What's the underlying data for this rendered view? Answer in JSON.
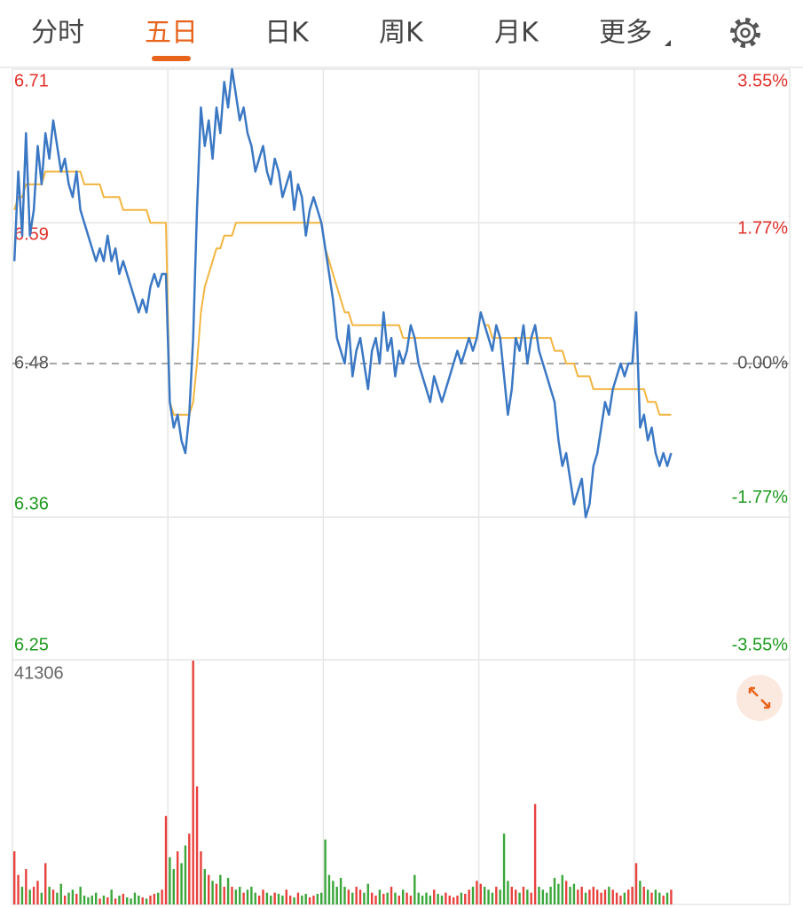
{
  "tabs": [
    "分时",
    "五日",
    "日K",
    "周K",
    "月K",
    "更多"
  ],
  "active_tab": 1,
  "chart_data": [
    {
      "type": "line",
      "xlim": [
        0,
        200
      ],
      "ylim": [
        6.25,
        6.71
      ],
      "yticks": [
        6.71,
        6.59,
        6.48,
        6.36,
        6.25
      ],
      "y2lim": [
        -3.55,
        3.55
      ],
      "y2ticks": [
        {
          "value": 3.55,
          "label": "3.55%"
        },
        {
          "value": 1.77,
          "label": "1.77%"
        },
        {
          "value": 0,
          "label": "0.00%"
        },
        {
          "value": -1.77,
          "label": "-1.77%"
        },
        {
          "value": -3.55,
          "label": "-3.55%"
        }
      ],
      "series": [
        {
          "color": "#3b78c4",
          "values": [
            6.56,
            6.63,
            6.58,
            6.66,
            6.58,
            6.6,
            6.65,
            6.62,
            6.66,
            6.64,
            6.67,
            6.65,
            6.63,
            6.64,
            6.62,
            6.61,
            6.63,
            6.6,
            6.59,
            6.58,
            6.57,
            6.56,
            6.57,
            6.56,
            6.58,
            6.56,
            6.57,
            6.55,
            6.56,
            6.55,
            6.54,
            6.53,
            6.52,
            6.53,
            6.52,
            6.54,
            6.55,
            6.54,
            6.55,
            6.55,
            6.45,
            6.43,
            6.44,
            6.42,
            6.41,
            6.44,
            6.5,
            6.6,
            6.68,
            6.65,
            6.67,
            6.64,
            6.68,
            6.66,
            6.7,
            6.68,
            6.71,
            6.69,
            6.67,
            6.68,
            6.66,
            6.65,
            6.63,
            6.64,
            6.65,
            6.63,
            6.62,
            6.64,
            6.63,
            6.61,
            6.62,
            6.63,
            6.6,
            6.62,
            6.61,
            6.58,
            6.6,
            6.61,
            6.6,
            6.59,
            6.57,
            6.55,
            6.53,
            6.5,
            6.49,
            6.48,
            6.51,
            6.47,
            6.49,
            6.5,
            6.48,
            6.46,
            6.49,
            6.5,
            6.48,
            6.52,
            6.49,
            6.5,
            6.47,
            6.49,
            6.48,
            6.49,
            6.51,
            6.5,
            6.48,
            6.47,
            6.46,
            6.45,
            6.47,
            6.46,
            6.45,
            6.46,
            6.47,
            6.48,
            6.49,
            6.48,
            6.49,
            6.5,
            6.49,
            6.5,
            6.52,
            6.51,
            6.5,
            6.49,
            6.51,
            6.5,
            6.47,
            6.44,
            6.46,
            6.5,
            6.49,
            6.51,
            6.48,
            6.5,
            6.51,
            6.49,
            6.48,
            6.47,
            6.46,
            6.45,
            6.42,
            6.4,
            6.41,
            6.39,
            6.37,
            6.38,
            6.39,
            6.36,
            6.37,
            6.4,
            6.41,
            6.43,
            6.45,
            6.44,
            6.46,
            6.47,
            6.48,
            6.47,
            6.48,
            6.48,
            6.52,
            6.43,
            6.44,
            6.42,
            6.43,
            6.41,
            6.4,
            6.41,
            6.4,
            6.41
          ]
        },
        {
          "color": "#f2b540",
          "values": [
            6.6,
            6.61,
            6.61,
            6.62,
            6.62,
            6.62,
            6.62,
            6.62,
            6.63,
            6.63,
            6.63,
            6.63,
            6.63,
            6.63,
            6.63,
            6.63,
            6.63,
            6.63,
            6.62,
            6.62,
            6.62,
            6.62,
            6.62,
            6.61,
            6.61,
            6.61,
            6.61,
            6.61,
            6.6,
            6.6,
            6.6,
            6.6,
            6.6,
            6.6,
            6.6,
            6.59,
            6.59,
            6.59,
            6.59,
            6.59,
            6.45,
            6.44,
            6.44,
            6.44,
            6.44,
            6.44,
            6.45,
            6.48,
            6.52,
            6.54,
            6.55,
            6.56,
            6.57,
            6.57,
            6.58,
            6.58,
            6.58,
            6.59,
            6.59,
            6.59,
            6.59,
            6.59,
            6.59,
            6.59,
            6.59,
            6.59,
            6.59,
            6.59,
            6.59,
            6.59,
            6.59,
            6.59,
            6.59,
            6.59,
            6.59,
            6.59,
            6.59,
            6.59,
            6.59,
            6.59,
            6.57,
            6.56,
            6.55,
            6.54,
            6.53,
            6.52,
            6.52,
            6.51,
            6.51,
            6.51,
            6.51,
            6.51,
            6.51,
            6.51,
            6.51,
            6.51,
            6.51,
            6.51,
            6.51,
            6.51,
            6.5,
            6.5,
            6.5,
            6.5,
            6.5,
            6.5,
            6.5,
            6.5,
            6.5,
            6.5,
            6.5,
            6.5,
            6.5,
            6.5,
            6.5,
            6.5,
            6.5,
            6.5,
            6.5,
            6.5,
            6.52,
            6.51,
            6.51,
            6.5,
            6.5,
            6.5,
            6.5,
            6.5,
            6.5,
            6.5,
            6.5,
            6.5,
            6.5,
            6.5,
            6.5,
            6.5,
            6.5,
            6.5,
            6.5,
            6.49,
            6.49,
            6.49,
            6.48,
            6.48,
            6.48,
            6.47,
            6.47,
            6.47,
            6.47,
            6.46,
            6.46,
            6.46,
            6.46,
            6.46,
            6.46,
            6.46,
            6.46,
            6.46,
            6.46,
            6.46,
            6.46,
            6.46,
            6.46,
            6.45,
            6.45,
            6.45,
            6.44,
            6.44,
            6.44,
            6.44
          ]
        }
      ]
    },
    {
      "type": "bar",
      "xlim": [
        0,
        200
      ],
      "ylim": [
        0,
        41306
      ],
      "yticks": [
        41306
      ],
      "up_color": "#e8413c",
      "down_color": "#3aa63a",
      "values": [
        9000,
        5000,
        3000,
        6000,
        2500,
        3000,
        4000,
        2000,
        7000,
        3000,
        2500,
        2000,
        3500,
        1500,
        2000,
        2500,
        1800,
        3000,
        1500,
        1200,
        1500,
        2000,
        1000,
        1500,
        1200,
        2500,
        1000,
        1500,
        1800,
        1200,
        1000,
        2000,
        1500,
        1200,
        1000,
        1500,
        1800,
        2000,
        2500,
        15000,
        8000,
        6000,
        9000,
        7000,
        10000,
        12000,
        41306,
        20000,
        9000,
        6000,
        5000,
        4000,
        3500,
        5000,
        3000,
        4500,
        3000,
        2500,
        3000,
        2000,
        2500,
        3000,
        2000,
        1500,
        2500,
        2000,
        1500,
        2000,
        1800,
        1500,
        2500,
        1500,
        1200,
        2000,
        1500,
        1800,
        1200,
        1500,
        1800,
        2000,
        11000,
        5000,
        4000,
        3000,
        4500,
        3000,
        2500,
        2000,
        3000,
        2500,
        2000,
        3500,
        2000,
        1500,
        2500,
        1800,
        2000,
        3000,
        2000,
        1500,
        2500,
        2000,
        1500,
        5000,
        2000,
        1500,
        2000,
        1500,
        2500,
        1800,
        1500,
        2000,
        1500,
        1200,
        1500,
        2000,
        1800,
        2500,
        3000,
        4000,
        3500,
        3000,
        2500,
        2000,
        3000,
        2500,
        12000,
        4000,
        3000,
        2500,
        2000,
        3000,
        2500,
        2000,
        17000,
        3000,
        2500,
        2000,
        3000,
        4500,
        3500,
        5000,
        4000,
        3000,
        3500,
        2500,
        3000,
        2000,
        2500,
        3000,
        2500,
        2000,
        2500,
        3000,
        2500,
        2000,
        1500,
        2000,
        2500,
        3000,
        7000,
        4000,
        3000,
        2500,
        2000,
        2500,
        2000,
        1500,
        2000,
        2500
      ]
    }
  ]
}
